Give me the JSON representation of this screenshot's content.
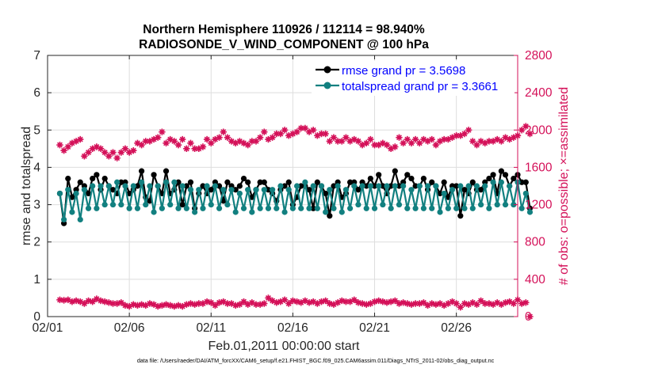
{
  "chart_data": {
    "type": "line",
    "title_line1": "Northern Hemisphere 110926 / 112114 = 98.940%",
    "title_line2": "RADIOSONDE_V_WIND_COMPONENT @ 100 hPa",
    "xlabel": "Feb.01,2011 00:00:00 start",
    "ylabel_left": "rmse and totalspread",
    "ylabel_right": "# of obs: o=possible; ×=assimilated",
    "xlim": [
      0,
      28.75
    ],
    "ylim_left": [
      0,
      7
    ],
    "ylim_right": [
      0,
      2800
    ],
    "x_ticks": [
      0,
      5,
      10,
      15,
      20,
      25
    ],
    "x_tick_labels": [
      "02/01",
      "02/06",
      "02/11",
      "02/16",
      "02/21",
      "02/26"
    ],
    "y_ticks_left": [
      0,
      1,
      2,
      3,
      4,
      5,
      6,
      7
    ],
    "y_tick_labels_left": [
      "0",
      "1",
      "2",
      "3",
      "4",
      "5",
      "6",
      "7"
    ],
    "y_ticks_right": [
      0,
      400,
      800,
      1200,
      1600,
      2000,
      2400,
      2800
    ],
    "y_tick_labels_right": [
      "0",
      "400",
      "800",
      "1200",
      "1600",
      "2000",
      "2400",
      "2800"
    ],
    "legend_position": "top-right",
    "colors": {
      "rmse": "#000000",
      "spread": "#128080",
      "obs": "#d41159",
      "legend_text": "#0000ff",
      "axis": "#262626",
      "grid": "#dedede"
    },
    "series": [
      {
        "name": "rmse grand pr = 3.5698",
        "values": [
          3.3,
          2.5,
          3.7,
          3.2,
          3.4,
          3.6,
          3.5,
          3.3,
          3.7,
          3.8,
          3.4,
          3.7,
          3.5,
          3.4,
          3.3,
          3.6,
          3.6,
          3.3,
          3.4,
          3.5,
          3.9,
          3.2,
          3.1,
          3.8,
          3.5,
          3.3,
          3.9,
          3.3,
          3.4,
          3.6,
          3.0,
          3.5,
          3.6,
          2.9,
          3.3,
          3.5,
          3.3,
          3.4,
          3.6,
          3.5,
          3.1,
          3.6,
          3.5,
          3.4,
          3.5,
          3.7,
          3.6,
          3.2,
          3.4,
          3.6,
          3.6,
          3.4,
          3.3,
          3.1,
          3.4,
          3.5,
          3.6,
          3.0,
          3.2,
          3.5,
          3.5,
          3.4,
          2.9,
          3.6,
          3.5,
          3.3,
          2.7,
          3.5,
          3.6,
          3.2,
          3.3,
          3.6,
          3.6,
          3.4,
          3.6,
          3.5,
          3.7,
          3.5,
          3.8,
          3.5,
          3.3,
          3.5,
          3.9,
          3.5,
          3.6,
          3.8,
          3.7,
          3.5,
          3.5,
          3.7,
          3.4,
          3.6,
          3.5,
          3.3,
          3.6,
          3.2,
          3.5,
          3.5,
          2.7,
          3.4,
          3.3,
          3.6,
          3.4,
          3.4,
          3.6,
          3.7,
          3.8,
          3.3,
          3.9,
          3.8,
          3.5,
          3.7,
          3.8,
          3.6,
          3.6,
          2.9
        ]
      },
      {
        "name": "totalspread grand pr = 3.3661",
        "values": [
          3.3,
          2.6,
          3.4,
          2.8,
          3.3,
          2.6,
          3.4,
          2.9,
          3.5,
          2.9,
          3.5,
          3.0,
          3.5,
          3.0,
          3.6,
          3.0,
          3.5,
          2.9,
          3.5,
          2.9,
          3.6,
          3.0,
          3.5,
          2.8,
          3.5,
          2.9,
          3.6,
          3.0,
          3.6,
          2.9,
          3.5,
          2.9,
          3.4,
          2.8,
          3.4,
          2.9,
          3.5,
          3.0,
          3.5,
          2.9,
          3.4,
          3.0,
          3.4,
          2.8,
          3.3,
          2.9,
          3.4,
          2.8,
          3.4,
          2.9,
          3.4,
          2.9,
          3.4,
          2.9,
          3.5,
          2.8,
          3.4,
          2.9,
          3.5,
          2.9,
          3.6,
          2.9,
          3.5,
          2.9,
          3.5,
          2.8,
          3.4,
          2.9,
          3.5,
          2.8,
          3.4,
          2.9,
          3.5,
          3.0,
          3.5,
          2.9,
          3.5,
          2.9,
          3.5,
          3.0,
          3.5,
          2.9,
          3.5,
          3.0,
          3.5,
          2.9,
          3.4,
          2.9,
          3.5,
          2.9,
          3.5,
          2.9,
          3.5,
          2.8,
          3.3,
          2.9,
          3.4,
          2.9,
          3.5,
          2.9,
          3.5,
          2.9,
          3.5,
          3.0,
          3.5,
          2.9,
          3.6,
          3.0,
          3.6,
          3.0,
          3.5,
          3.0,
          3.6,
          2.9,
          3.3,
          2.8
        ]
      },
      {
        "name": "possible",
        "values": [
          1840,
          1780,
          1820,
          1860,
          1880,
          1900,
          1720,
          1760,
          1800,
          1820,
          1800,
          1760,
          1720,
          1760,
          1700,
          1760,
          1800,
          1760,
          1780,
          1860,
          1840,
          1880,
          1880,
          1900,
          1920,
          1980,
          1860,
          1900,
          1880,
          1840,
          1900,
          1800,
          1860,
          1800,
          1800,
          1820,
          1900,
          1860,
          1900,
          1920,
          1980,
          1920,
          1880,
          1860,
          1880,
          1860,
          1840,
          1880,
          1880,
          1920,
          1980,
          1900,
          1920,
          1960,
          1960,
          2000,
          1940,
          1960,
          1980,
          2020,
          2020,
          1980,
          2000,
          1940,
          1960,
          1960,
          1880,
          1920,
          1880,
          1880,
          1920,
          1880,
          1900,
          1880,
          1840,
          1860,
          1900,
          1840,
          1840,
          1860,
          1840,
          1800,
          1820,
          1920,
          1860,
          1900,
          1860,
          1900,
          1860,
          1900,
          1880,
          1900,
          1840,
          1880,
          1900,
          1900,
          1920,
          1940,
          1940,
          1960,
          2000,
          1880,
          1840,
          1880,
          1860,
          1880,
          1880,
          1900,
          1880,
          1920,
          1900,
          1920,
          1940,
          2000,
          2040,
          1960
        ]
      },
      {
        "name": "assimilated",
        "values": [
          180,
          175,
          180,
          160,
          170,
          160,
          140,
          170,
          160,
          190,
          170,
          160,
          150,
          140,
          140,
          150,
          120,
          110,
          130,
          120,
          130,
          120,
          140,
          130,
          110,
          120,
          130,
          120,
          110,
          120,
          110,
          130,
          140,
          130,
          140,
          140,
          160,
          150,
          120,
          150,
          160,
          140,
          140,
          120,
          130,
          160,
          130,
          150,
          130,
          130,
          140,
          200,
          170,
          150,
          160,
          180,
          140,
          170,
          160,
          150,
          170,
          150,
          160,
          140,
          160,
          170,
          140,
          130,
          150,
          170,
          160,
          160,
          180,
          150,
          140,
          130,
          140,
          160,
          170,
          160,
          150,
          160,
          170,
          140,
          150,
          140,
          130,
          140,
          140,
          150,
          120,
          140,
          130,
          140,
          120,
          140,
          160,
          140,
          100,
          140,
          130,
          150,
          130,
          170,
          140,
          140,
          130,
          150,
          130,
          150,
          160,
          140,
          180,
          140,
          150,
          0
        ]
      }
    ]
  },
  "footer": {
    "data_file": "data file: /Users/raeder/DAI/ATM_forcXX/CAM6_setup/f.e21.FHIST_BGC.f09_025.CAM6assim.011/Diags_NTrS_2011-02/obs_diag_output.nc"
  }
}
